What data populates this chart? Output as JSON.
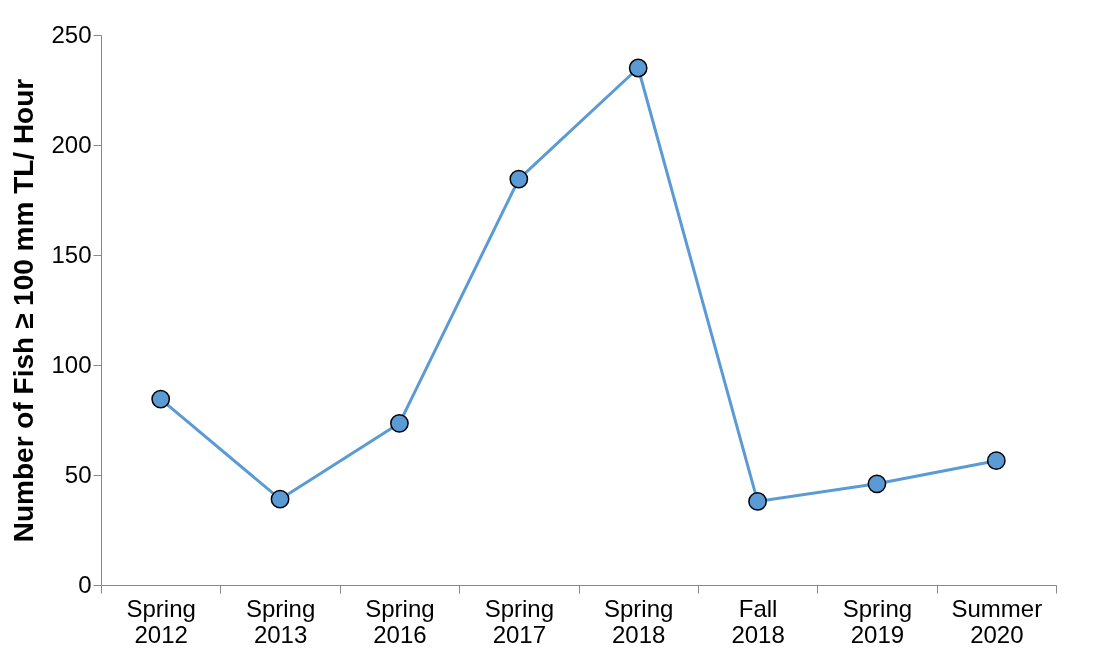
{
  "chart_data": {
    "type": "line",
    "ylabel": "Number of Fish ≥ 100 mm TL/ Hour",
    "categories": [
      "Spring 2012",
      "Spring 2013",
      "Spring 2016",
      "Spring 2017",
      "Spring 2018",
      "Fall 2018",
      "Spring 2019",
      "Summer 2020"
    ],
    "series": [
      {
        "color": "#5b9bd5",
        "values": [
          84.5,
          39,
          73.5,
          184.5,
          235,
          38,
          46,
          56.5
        ]
      }
    ],
    "ylim": [
      0,
      250
    ],
    "yticks": [
      0,
      50,
      100,
      150,
      200,
      250
    ],
    "grid": false,
    "marker": "circle",
    "line_style": "solid"
  }
}
